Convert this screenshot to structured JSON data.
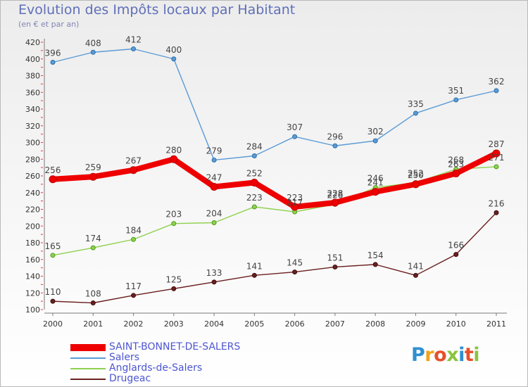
{
  "chart_data": {
    "type": "line",
    "title": "Evolution des Impôts locaux par Habitant",
    "subtitle": "(en € et par an)",
    "categories": [
      "2000",
      "2001",
      "2002",
      "2003",
      "2004",
      "2005",
      "2006",
      "2007",
      "2008",
      "2009",
      "2010",
      "2011"
    ],
    "ylim": [
      100,
      420
    ],
    "y_ticks": [
      100,
      120,
      140,
      160,
      180,
      200,
      220,
      240,
      260,
      280,
      300,
      320,
      340,
      360,
      380,
      400,
      420
    ],
    "grid": false,
    "legend_position": "bottom-left",
    "series": [
      {
        "name": "SAINT-BONNET-DE-SALERS",
        "color": "#ee0000",
        "values": [
          256,
          259,
          267,
          280,
          247,
          252,
          223,
          228,
          241,
          250,
          263,
          287
        ],
        "labels": [
          "256",
          "259",
          "267",
          "280",
          "247",
          "252",
          "223",
          "228",
          "241",
          "250",
          "263",
          "287"
        ]
      },
      {
        "name": "Salers",
        "color": "#5b9bd5",
        "values": [
          396,
          408,
          412,
          400,
          279,
          284,
          307,
          296,
          302,
          335,
          351,
          362
        ],
        "labels": [
          "396",
          "408",
          "412",
          "400",
          "279",
          "284",
          "307",
          "296",
          "302",
          "335",
          "351",
          "362"
        ]
      },
      {
        "name": "Anglards-de-Salers",
        "color": "#8fd14f",
        "values": [
          165,
          174,
          184,
          203,
          204,
          223,
          217,
          226,
          246,
          252,
          268,
          271
        ],
        "labels": [
          "165",
          "174",
          "184",
          "203",
          "204",
          "223",
          "217",
          "226",
          "246",
          "252",
          "268",
          "271"
        ]
      },
      {
        "name": "Drugeac",
        "color": "#6b1f1f",
        "values": [
          110,
          108,
          117,
          125,
          133,
          141,
          145,
          151,
          154,
          141,
          166,
          216
        ],
        "labels": [
          "110",
          "108",
          "117",
          "125",
          "133",
          "141",
          "145",
          "151",
          "154",
          "141",
          "166",
          "216"
        ]
      }
    ]
  },
  "logo": {
    "letters": [
      "P",
      "r",
      "o",
      "x",
      "i",
      "t",
      "i"
    ]
  }
}
